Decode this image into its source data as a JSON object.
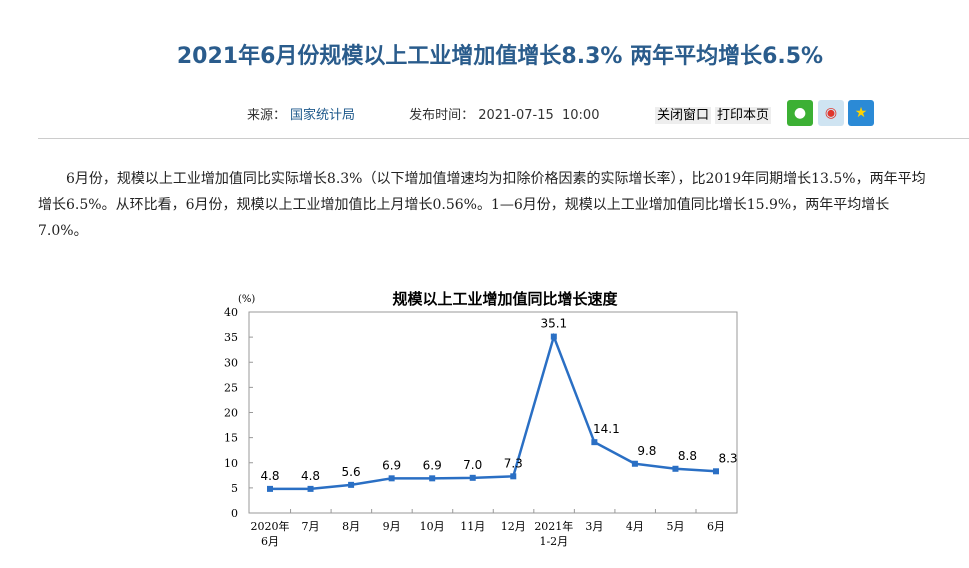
{
  "article": {
    "title": "2021年6月份规模以上工业增加值增长8.3% 两年平均增长6.5%",
    "source_label": "来源：",
    "source": "国家统计局",
    "time_label": "发布时间：",
    "time": "2021-07-15  10:00",
    "close_label": "关闭窗口",
    "print_label": "打印本页",
    "paragraph": "6月份，规模以上工业增加值同比实际增长8.3%（以下增加值增速均为扣除价格因素的实际增长率），比2019年同期增长13.5%，两年平均增长6.5%。从环比看，6月份，规模以上工业增加值比上月增长0.56%。1—6月份，规模以上工业增加值同比增长15.9%，两年平均增长7.0%。"
  },
  "share": {
    "wechat": "wechat-icon",
    "weibo": "weibo-icon",
    "qzone": "qzone-icon"
  },
  "chart_data": {
    "type": "line",
    "title": "规模以上工业增加值同比增长速度",
    "ylabel": "(%)",
    "ylim": [
      0,
      40
    ],
    "yticks": [
      0,
      5,
      10,
      15,
      20,
      25,
      30,
      35,
      40
    ],
    "categories": [
      "2020年\n6月",
      "7月",
      "8月",
      "9月",
      "10月",
      "11月",
      "12月",
      "2021年\n1-2月",
      "3月",
      "4月",
      "5月",
      "6月"
    ],
    "values": [
      4.8,
      4.8,
      5.6,
      6.9,
      6.9,
      7.0,
      7.3,
      35.1,
      14.1,
      9.8,
      8.8,
      8.3
    ],
    "labels": [
      "4.8",
      "4.8",
      "5.6",
      "6.9",
      "6.9",
      "7.0",
      "7.3",
      "35.1",
      "14.1",
      "9.8",
      "8.8",
      "8.3"
    ],
    "color": "#2a6fc4"
  }
}
